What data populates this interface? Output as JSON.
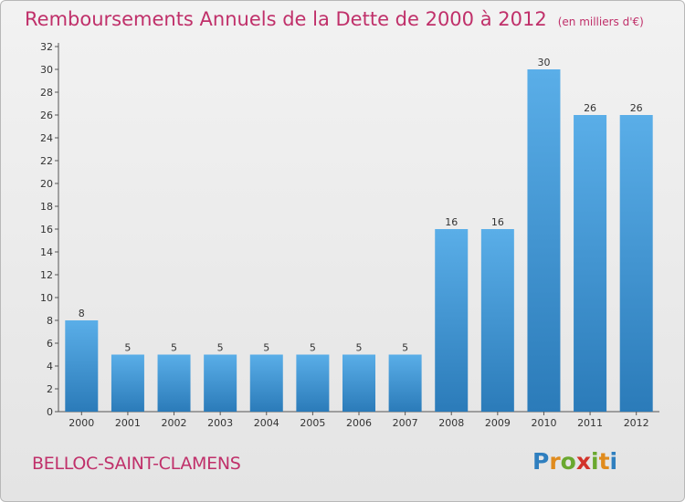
{
  "title": "Remboursements Annuels de la Dette de 2000 à 2012",
  "subtitle": "(en milliers d'€)",
  "town": "BELLOC-SAINT-CLAMENS",
  "logo": {
    "letters": [
      "P",
      "r",
      "o",
      "x",
      "i",
      "t",
      "i"
    ],
    "colors": [
      "#2f7fbf",
      "#e08b1d",
      "#6aa82f",
      "#d2332a",
      "#6aa82f",
      "#e08b1d",
      "#2f7fbf"
    ]
  },
  "colors": {
    "bar_light": "#5aaee8",
    "bar_dark": "#2b7bb9",
    "axis": "#555555",
    "grid": "#d0d0d0"
  },
  "chart_data": {
    "type": "bar",
    "categories": [
      "2000",
      "2001",
      "2002",
      "2003",
      "2004",
      "2005",
      "2006",
      "2007",
      "2008",
      "2009",
      "2010",
      "2011",
      "2012"
    ],
    "values": [
      8,
      5,
      5,
      5,
      5,
      5,
      5,
      5,
      16,
      16,
      30,
      26,
      26
    ],
    "data_labels": [
      "8",
      "5",
      "5",
      "5",
      "5",
      "5",
      "5",
      "5",
      "16",
      "16",
      "30",
      "26",
      "26"
    ],
    "yticks": [
      0,
      2,
      4,
      6,
      8,
      10,
      12,
      14,
      16,
      18,
      20,
      22,
      24,
      26,
      28,
      30,
      32
    ],
    "ylim": [
      0,
      32
    ],
    "grid": false,
    "legend": "none"
  }
}
